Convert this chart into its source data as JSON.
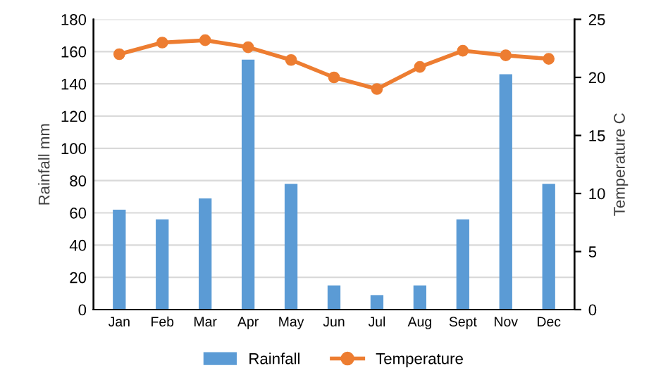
{
  "chart_data": {
    "type": "bar",
    "ylabel": "Rainfall mm",
    "y2label": "Temperature C",
    "categories": [
      "Jan",
      "Feb",
      "Mar",
      "Apr",
      "May",
      "Jun",
      "Jul",
      "Aug",
      "Sept",
      "Nov",
      "Dec"
    ],
    "series": [
      {
        "name": "Rainfall",
        "color": "#5b9bd5",
        "values": [
          62,
          56,
          69,
          155,
          78,
          15,
          9,
          15,
          56,
          146,
          78
        ]
      },
      {
        "name": "Temperature",
        "type": "line",
        "axis": "y2",
        "color": "#ed7d31",
        "marker": "circle",
        "values": [
          22.0,
          23.0,
          23.2,
          22.6,
          21.5,
          20.0,
          19.0,
          20.9,
          22.3,
          21.9,
          21.6
        ]
      }
    ],
    "ylim": [
      0,
      180
    ],
    "yticks": [
      0,
      20,
      40,
      60,
      80,
      100,
      120,
      140,
      160,
      180
    ],
    "y2lim": [
      0,
      25
    ],
    "y2ticks": [
      0,
      5,
      10,
      15,
      20,
      25
    ],
    "grid": "y",
    "legend": "bottom"
  }
}
